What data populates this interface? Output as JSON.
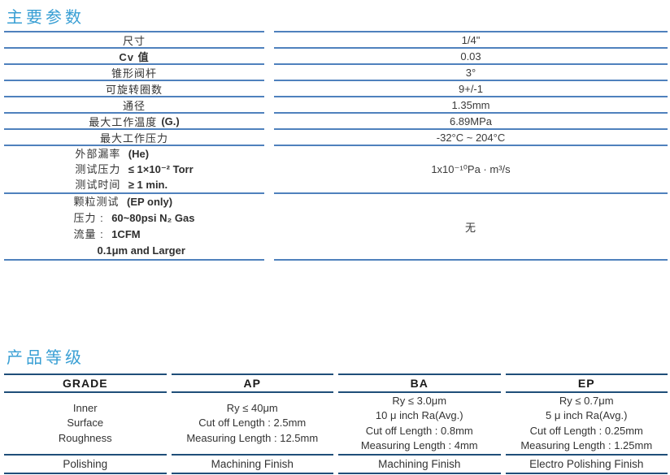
{
  "colors": {
    "title_blue": "#399FD4",
    "table1_line": "#4F81BD",
    "table2_line": "#1F4E79",
    "text": "#333333"
  },
  "section_main_params": {
    "title": "主要参数",
    "rows": [
      {
        "label_zh": "尺寸",
        "label_en": "",
        "value": "1/4\""
      },
      {
        "label_zh": "Cv 值",
        "label_en": "",
        "value": "0.03"
      },
      {
        "label_zh": "锥形阀杆",
        "label_en": "",
        "value": "3°"
      },
      {
        "label_zh": "可旋转圈数",
        "label_en": "",
        "value": "9+/-1"
      },
      {
        "label_zh": "通径",
        "label_en": "",
        "value": "1.35mm"
      },
      {
        "label_zh": "最大工作温度",
        "label_en": "(G.)",
        "value": "6.89MPa"
      },
      {
        "label_zh": "最大工作压力",
        "label_en": "",
        "value": "-32°C ~ 204°C"
      }
    ],
    "leak_row": {
      "lines": [
        {
          "zh": "外部漏率",
          "en": "(He)"
        },
        {
          "zh": "测试压力",
          "en": "≤ 1×10⁻² Torr"
        },
        {
          "zh": "测试时间",
          "en": "≥ 1 min."
        }
      ],
      "value": "1x10⁻¹⁰Pa · m³/s"
    },
    "particle_row": {
      "lines": [
        {
          "zh": "颗粒测试",
          "en": "(EP only)"
        },
        {
          "zh": "压力 :",
          "en": "60~80psi N₂ Gas"
        },
        {
          "zh": "流量 :",
          "en": "1CFM"
        },
        {
          "zh": "",
          "en": "0.1μm and Larger"
        }
      ],
      "value": "无"
    }
  },
  "section_product_grade": {
    "title": "产品等级",
    "headers": [
      "GRADE",
      "AP",
      "BA",
      "EP"
    ],
    "roughness": {
      "grade": [
        "Inner",
        "Surface",
        "Roughness"
      ],
      "ap": [
        "Ry ≤ 40μm",
        "Cut off Length : 2.5mm",
        "Measuring Length : 12.5mm"
      ],
      "ba": [
        "Ry ≤ 3.0μm",
        "10 μ inch Ra(Avg.)",
        "Cut off Length : 0.8mm",
        "Measuring Length : 4mm"
      ],
      "ep": [
        "Ry ≤ 0.7μm",
        "5 μ inch Ra(Avg.)",
        "Cut off Length : 0.25mm",
        "Measuring Length : 1.25mm"
      ]
    },
    "polishing": [
      "Polishing",
      "Machining Finish",
      "Machining Finish",
      "Electro Polishing Finish"
    ]
  }
}
